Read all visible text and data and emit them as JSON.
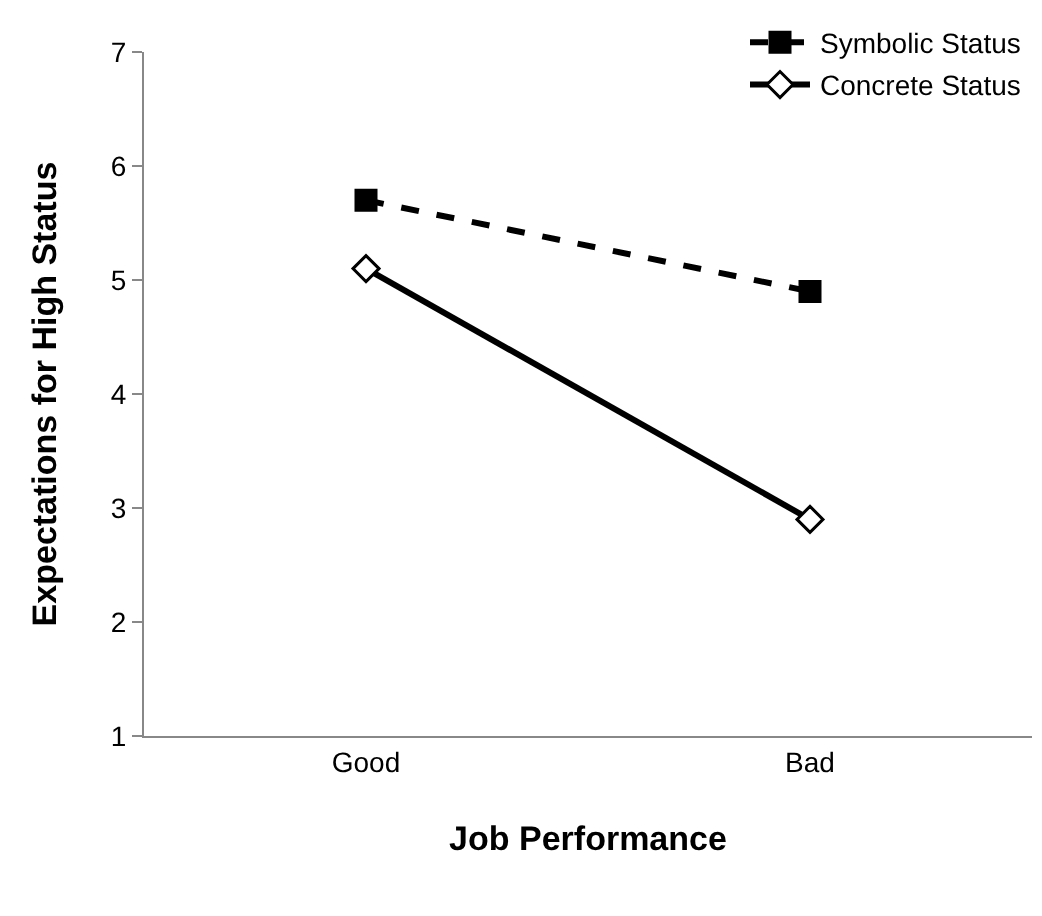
{
  "chart_data": {
    "type": "line",
    "xlabel": "Job Performance",
    "ylabel": "Expectations for High Status",
    "categories": [
      "Good",
      "Bad"
    ],
    "series": [
      {
        "name": "Symbolic Status",
        "color": "#000000",
        "values": [
          5.7,
          4.9
        ],
        "marker": "square",
        "line_style": "dashed"
      },
      {
        "name": "Concrete Status",
        "color": "#000000",
        "values": [
          5.1,
          2.9
        ],
        "marker": "diamond",
        "line_style": "solid"
      }
    ],
    "ylim": [
      1,
      7
    ],
    "yticks": [
      1,
      2,
      3,
      4,
      5,
      6,
      7
    ],
    "grid": false,
    "legend": "top right"
  }
}
